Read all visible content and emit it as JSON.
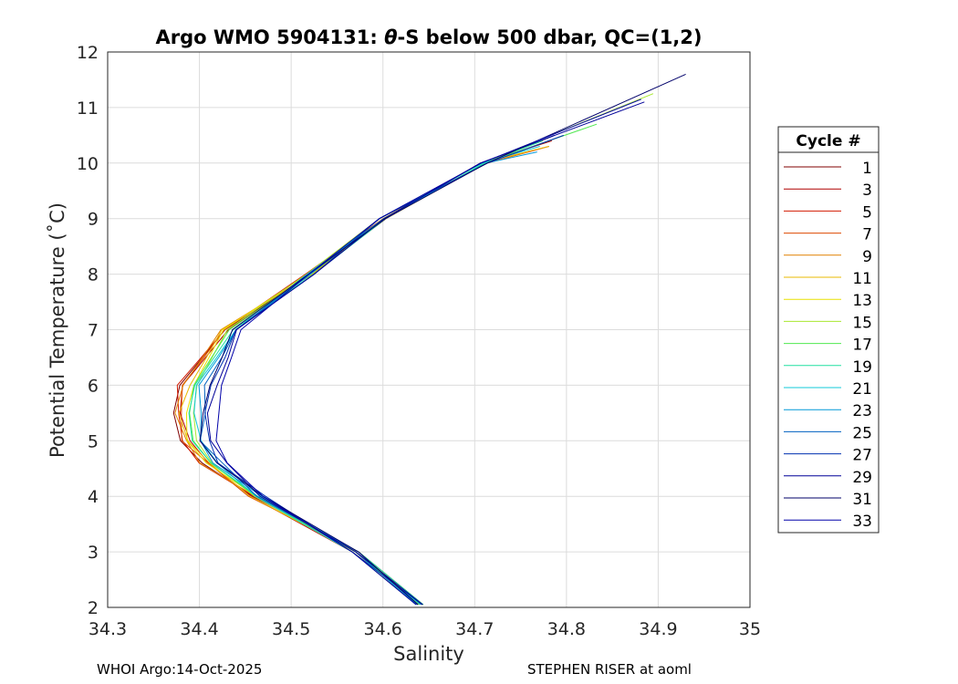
{
  "chart_data": {
    "type": "line",
    "title_prefix": "Argo WMO 5904131: ",
    "title_theta": "θ",
    "title_suffix": "-S below 500 dbar,  QC=(1,2)",
    "xlabel": "Salinity",
    "ylabel": "Potential Temperature (˚C)",
    "xlim": [
      34.3,
      35
    ],
    "ylim": [
      2,
      12
    ],
    "xticks": [
      "34.3",
      "34.4",
      "34.5",
      "34.6",
      "34.7",
      "34.8",
      "34.9",
      "35"
    ],
    "yticks": [
      "2",
      "3",
      "4",
      "5",
      "6",
      "7",
      "8",
      "9",
      "10",
      "11",
      "12"
    ],
    "grid": true,
    "legend": {
      "title": "Cycle #",
      "position": "right-outside",
      "entries": [
        {
          "label": "1",
          "color": "#800000"
        },
        {
          "label": "3",
          "color": "#b00000"
        },
        {
          "label": "5",
          "color": "#d21a00"
        },
        {
          "label": "7",
          "color": "#dd4a00"
        },
        {
          "label": "9",
          "color": "#e08000"
        },
        {
          "label": "11",
          "color": "#e8b800"
        },
        {
          "label": "13",
          "color": "#e8e000"
        },
        {
          "label": "15",
          "color": "#a8e830"
        },
        {
          "label": "17",
          "color": "#50e850"
        },
        {
          "label": "19",
          "color": "#20e0a0"
        },
        {
          "label": "21",
          "color": "#10c8d8"
        },
        {
          "label": "23",
          "color": "#0098d8"
        },
        {
          "label": "25",
          "color": "#0060c0"
        },
        {
          "label": "27",
          "color": "#0030b0"
        },
        {
          "label": "29",
          "color": "#000098"
        },
        {
          "label": "31",
          "color": "#00006a"
        },
        {
          "label": "33",
          "color": "#0000a8"
        }
      ]
    },
    "series_template": {
      "theta": [
        2.05,
        3.0,
        4.0,
        4.6,
        5.0,
        5.5,
        6.0,
        6.5,
        7.0,
        8.0,
        9.0,
        10.0,
        10.6
      ],
      "salinity_profile": [
        34.64,
        34.57,
        34.46,
        34.41,
        34.39,
        34.385,
        34.39,
        34.41,
        34.43,
        34.52,
        34.6,
        34.71,
        34.8
      ]
    },
    "series_offsets": [
      {
        "cycle": "1",
        "min_shift": -0.01,
        "top_theta": 10.5
      },
      {
        "cycle": "3",
        "min_shift": -0.005,
        "top_theta": 10.4
      },
      {
        "cycle": "5",
        "min_shift": -0.012,
        "top_theta": 10.3
      },
      {
        "cycle": "7",
        "min_shift": -0.008,
        "top_theta": 10.4
      },
      {
        "cycle": "9",
        "min_shift": -0.01,
        "top_theta": 10.2
      },
      {
        "cycle": "11",
        "min_shift": -0.004,
        "top_theta": 10.3
      },
      {
        "cycle": "13",
        "min_shift": 0.0,
        "top_theta": 10.25
      },
      {
        "cycle": "15",
        "min_shift": 0.005,
        "top_theta": 11.25
      },
      {
        "cycle": "17",
        "min_shift": 0.004,
        "top_theta": 10.7
      },
      {
        "cycle": "19",
        "min_shift": 0.008,
        "top_theta": 10.4
      },
      {
        "cycle": "21",
        "min_shift": 0.012,
        "top_theta": 10.3
      },
      {
        "cycle": "23",
        "min_shift": 0.015,
        "top_theta": 10.2
      },
      {
        "cycle": "25",
        "min_shift": 0.02,
        "top_theta": 10.5
      },
      {
        "cycle": "27",
        "min_shift": 0.025,
        "top_theta": 10.5
      },
      {
        "cycle": "29",
        "min_shift": 0.03,
        "top_theta": 11.1
      },
      {
        "cycle": "31",
        "min_shift": 0.02,
        "top_theta": 11.6
      },
      {
        "cycle": "33",
        "min_shift": 0.035,
        "top_theta": 11.15
      }
    ]
  },
  "footer": {
    "left": "WHOI Argo:14-Oct-2025",
    "right": "STEPHEN RISER at aoml"
  }
}
